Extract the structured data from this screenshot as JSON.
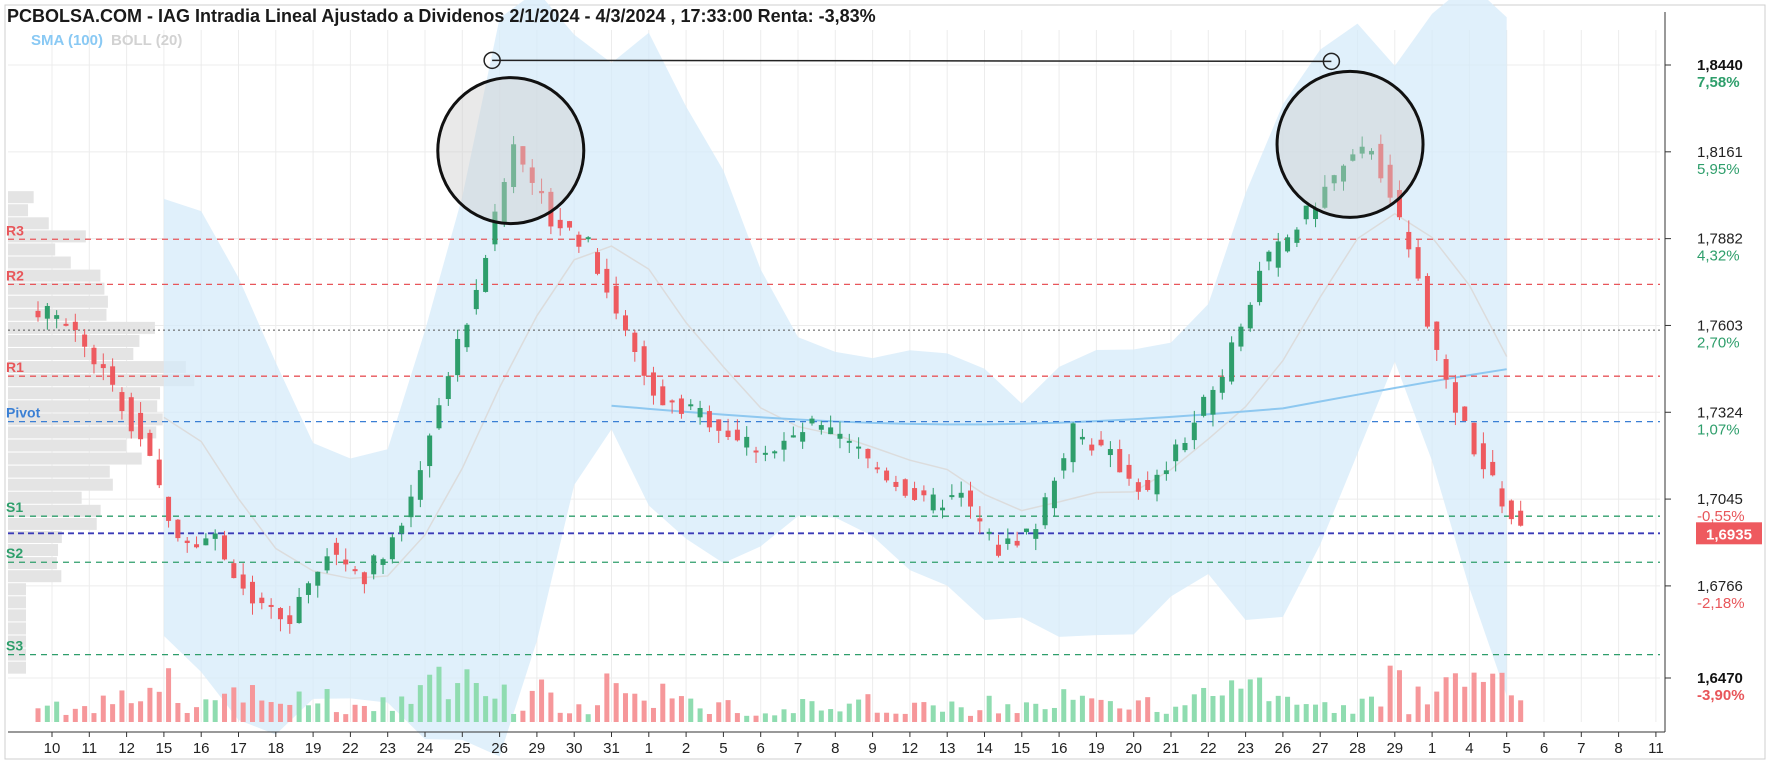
{
  "chart_data": {
    "type": "candlestick",
    "title": "PCBOLSA.COM - IAG Intradia Lineal Ajustado a Dividenos 2/1/2024 - 4/3/2024 , 17:33:00 Renta: -3,83%",
    "legend": {
      "sma": "SMA (100)",
      "boll": "BOLL (20)"
    },
    "y_range": [
      1.637,
      1.855
    ],
    "y_scale": "linear",
    "y_axis_position": "right",
    "grid": true,
    "y_ticks": [
      {
        "value": 1.844,
        "label": "1,8440",
        "pct": "7,58%",
        "bold": true,
        "pct_color": "green"
      },
      {
        "value": 1.8161,
        "label": "1,8161",
        "pct": "5,95%",
        "bold": false,
        "pct_color": "green"
      },
      {
        "value": 1.7882,
        "label": "1,7882",
        "pct": "4,32%",
        "bold": false,
        "pct_color": "green"
      },
      {
        "value": 1.7603,
        "label": "1,7603",
        "pct": "2,70%",
        "bold": false,
        "pct_color": "green"
      },
      {
        "value": 1.7324,
        "label": "1,7324",
        "pct": "1,07%",
        "bold": false,
        "pct_color": "green"
      },
      {
        "value": 1.7045,
        "label": "1,7045",
        "pct": "-0,55%",
        "bold": false,
        "pct_color": "red"
      },
      {
        "value": 1.6766,
        "label": "1,6766",
        "pct": "-2,18%",
        "bold": false,
        "pct_color": "red"
      },
      {
        "value": 1.647,
        "label": "1,6470",
        "pct": "-3,90%",
        "bold": true,
        "pct_color": "red"
      }
    ],
    "current_price": {
      "value": 1.6935,
      "label": "1,6935"
    },
    "pivot_levels": [
      {
        "name": "R3",
        "value": 1.788,
        "color": "#e8565a"
      },
      {
        "name": "R2",
        "value": 1.7735,
        "color": "#e8565a"
      },
      {
        "name": "R1",
        "value": 1.744,
        "color": "#e8565a"
      },
      {
        "name": "Pivot",
        "value": 1.7294,
        "color": "#3a7fd4"
      },
      {
        "name": "S1",
        "value": 1.699,
        "color": "#2e9e6b"
      },
      {
        "name": "S2",
        "value": 1.6842,
        "color": "#2e9e6b"
      },
      {
        "name": "S3",
        "value": 1.6545,
        "color": "#2e9e6b"
      }
    ],
    "reference_line": 1.7588,
    "x_labels": [
      "10",
      "11",
      "12",
      "15",
      "16",
      "17",
      "18",
      "19",
      "22",
      "23",
      "24",
      "25",
      "26",
      "29",
      "30",
      "31",
      "1",
      "2",
      "5",
      "6",
      "7",
      "8",
      "9",
      "12",
      "13",
      "14",
      "15",
      "16",
      "19",
      "20",
      "21",
      "22",
      "23",
      "26",
      "27",
      "28",
      "29",
      "1",
      "4",
      "5",
      "6",
      "7",
      "8",
      "11"
    ],
    "session_closes": [
      1.762,
      1.745,
      1.724,
      1.692,
      1.692,
      1.67,
      1.665,
      1.688,
      1.68,
      1.696,
      1.736,
      1.772,
      1.818,
      1.795,
      1.786,
      1.758,
      1.735,
      1.732,
      1.724,
      1.72,
      1.728,
      1.722,
      1.712,
      1.703,
      1.705,
      1.688,
      1.696,
      1.726,
      1.718,
      1.706,
      1.724,
      1.745,
      1.778,
      1.792,
      1.808,
      1.818,
      1.785,
      1.74,
      1.715,
      1.6935
    ],
    "annotations": [
      {
        "type": "circle",
        "label": "",
        "x_index": 12.3,
        "price": 1.8165
      },
      {
        "type": "circle",
        "label": "",
        "x_index": 34.8,
        "price": 1.8185
      },
      {
        "type": "hline",
        "label": "",
        "from_index": 11.8,
        "to_index": 34.3,
        "price": 1.8455
      }
    ]
  }
}
